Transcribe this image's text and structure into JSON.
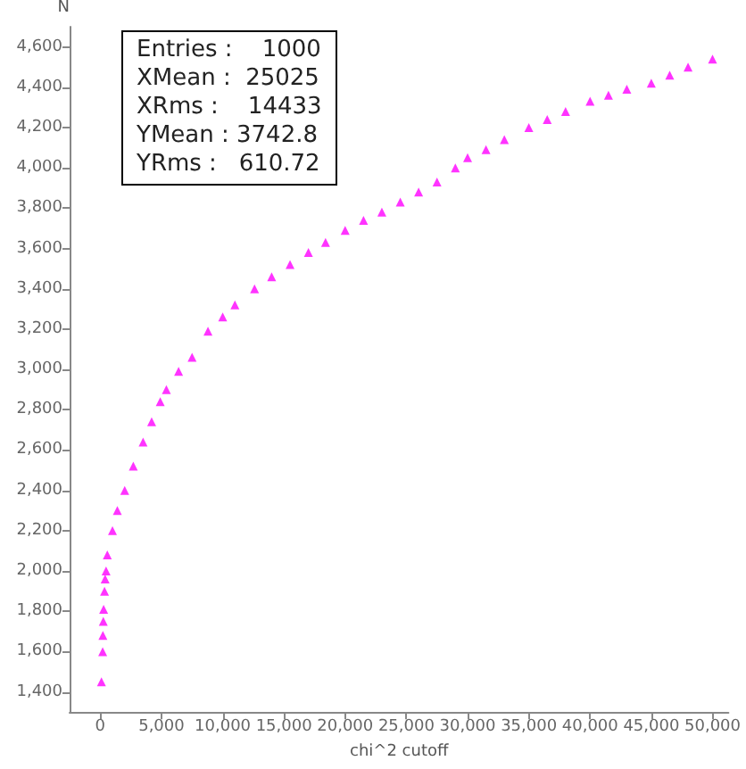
{
  "chart_data": {
    "type": "scatter",
    "xlabel": "chi^2 cutoff",
    "ylabel": "N",
    "annotations": [
      "Entries :    1000",
      "XMean :  25025",
      "XRms :    14433",
      "YMean : 3742.8",
      "YRms :   610.72"
    ],
    "x": [
      100,
      200,
      220,
      250,
      280,
      350,
      400,
      480,
      580,
      1000,
      1400,
      2000,
      2700,
      3500,
      4200,
      4900,
      5400,
      6400,
      7500,
      8800,
      10000,
      11000,
      12600,
      14000,
      15500,
      17000,
      18400,
      20000,
      21500,
      23000,
      24500,
      26000,
      27500,
      29000,
      30000,
      31500,
      33000,
      35000,
      36500,
      38000,
      40000,
      41500,
      43000,
      45000,
      46500,
      48000,
      50000
    ],
    "series": [
      {
        "color": "#ff00ff",
        "values": [
          1450,
          1600,
          1680,
          1750,
          1810,
          1900,
          1960,
          2000,
          2080,
          2200,
          2300,
          2400,
          2520,
          2640,
          2740,
          2840,
          2900,
          2990,
          3060,
          3190,
          3260,
          3320,
          3400,
          3460,
          3520,
          3580,
          3630,
          3690,
          3740,
          3780,
          3830,
          3880,
          3930,
          4000,
          4050,
          4090,
          4140,
          4200,
          4240,
          4280,
          4330,
          4360,
          4390,
          4420,
          4460,
          4500,
          4540
        ]
      }
    ],
    "xlim": [
      -2500,
      51300
    ],
    "ylim": [
      1300,
      4700
    ],
    "xticks": [
      0,
      {
        "value": 5000,
        "label": "5,000"
      },
      {
        "value": 10000,
        "label": "10,000"
      },
      {
        "value": 15000,
        "label": "15,000"
      },
      {
        "value": 20000,
        "label": "20,000"
      },
      {
        "value": 25000,
        "label": "25,000"
      },
      {
        "value": 30000,
        "label": "30,000"
      },
      {
        "value": 35000,
        "label": "35,000"
      },
      {
        "value": 40000,
        "label": "40,000"
      },
      {
        "value": 45000,
        "label": "45,000"
      },
      {
        "value": 50000,
        "label": "50,000"
      }
    ],
    "yticks": [
      {
        "value": 1400,
        "label": "1,400"
      },
      {
        "value": 1600,
        "label": "1,600"
      },
      {
        "value": 1800,
        "label": "1,800"
      },
      {
        "value": 2000,
        "label": "2,000"
      },
      {
        "value": 2200,
        "label": "2,200"
      },
      {
        "value": 2400,
        "label": "2,400"
      },
      {
        "value": 2600,
        "label": "2,600"
      },
      {
        "value": 2800,
        "label": "2,800"
      },
      {
        "value": 3000,
        "label": "3,000"
      },
      {
        "value": 3200,
        "label": "3,200"
      },
      {
        "value": 3400,
        "label": "3,400"
      },
      {
        "value": 3600,
        "label": "3,600"
      },
      {
        "value": 3800,
        "label": "3,800"
      },
      {
        "value": 4000,
        "label": "4,000"
      },
      {
        "value": 4200,
        "label": "4,200"
      },
      {
        "value": 4400,
        "label": "4,400"
      },
      {
        "value": 4600,
        "label": "4,600"
      }
    ],
    "marker": "triangle",
    "grid": false
  }
}
